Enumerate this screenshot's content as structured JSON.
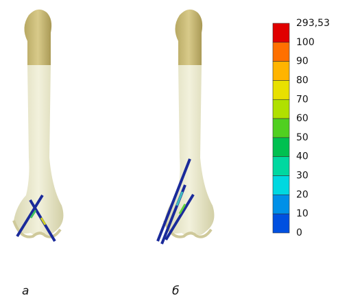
{
  "panels": [
    "а",
    "б"
  ],
  "legend": {
    "labels": [
      "293,53",
      "100",
      "90",
      "80",
      "70",
      "60",
      "50",
      "40",
      "30",
      "20",
      "10",
      "0"
    ]
  }
}
